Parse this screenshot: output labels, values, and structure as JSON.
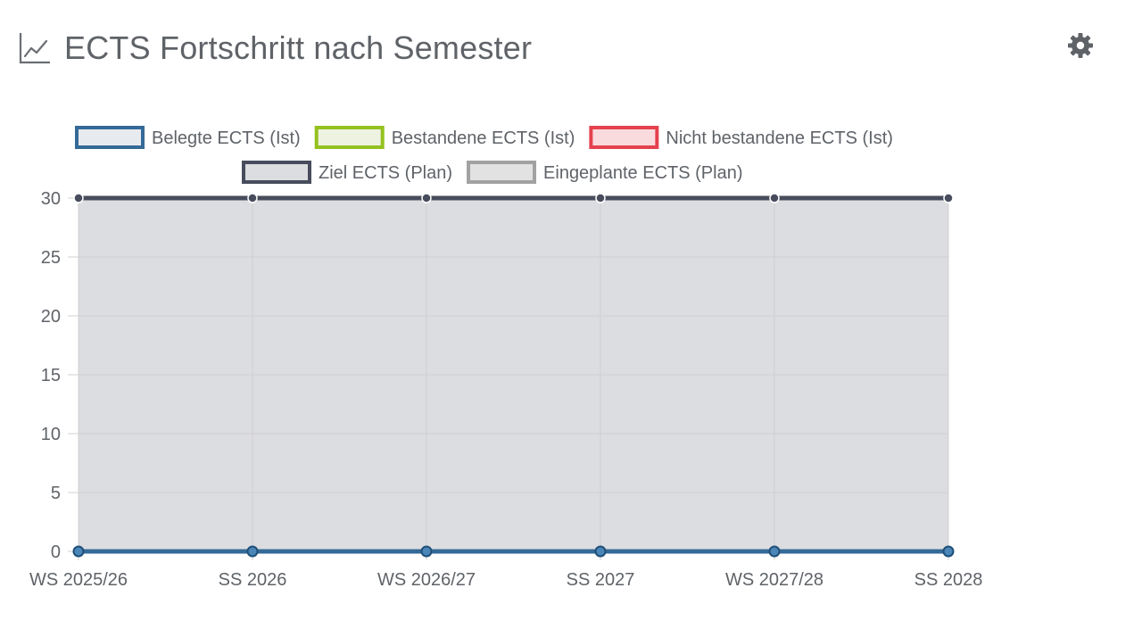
{
  "header": {
    "title": "ECTS Fortschritt nach Semester",
    "title_icon": "line-chart-icon",
    "settings_icon": "gear-icon"
  },
  "colors": {
    "title_text": "#5f6368",
    "grid": "#d0d0d3",
    "plot_fill": "#dcdde0",
    "belegte": "#356a98",
    "bestandene": "#95c11f",
    "nicht_bestandene": "#e5414e",
    "ziel": "#474d5d",
    "eingeplante": "#a1a1a1"
  },
  "chart_data": {
    "type": "line",
    "title": "",
    "xlabel": "",
    "ylabel": "",
    "categories": [
      "WS 2025/26",
      "SS 2026",
      "WS 2026/27",
      "SS 2027",
      "WS 2027/28",
      "SS 2028"
    ],
    "ylim": [
      0,
      30
    ],
    "yticks": [
      0,
      5,
      10,
      15,
      20,
      25,
      30
    ],
    "grid": true,
    "legend_position": "top-center",
    "series": [
      {
        "name": "Belegte ECTS (Ist)",
        "key": "belegte",
        "values": [
          0,
          0,
          0,
          0,
          0,
          0
        ]
      },
      {
        "name": "Bestandene ECTS (Ist)",
        "key": "bestandene",
        "values": [
          0,
          0,
          0,
          0,
          0,
          0
        ]
      },
      {
        "name": "Nicht bestandene ECTS (Ist)",
        "key": "nicht_bestandene",
        "values": [
          0,
          0,
          0,
          0,
          0,
          0
        ]
      },
      {
        "name": "Ziel ECTS (Plan)",
        "key": "ziel",
        "values": [
          30,
          30,
          30,
          30,
          30,
          30
        ]
      },
      {
        "name": "Eingeplante ECTS (Plan)",
        "key": "eingeplante",
        "values": [
          0,
          0,
          0,
          0,
          0,
          0
        ]
      }
    ]
  }
}
